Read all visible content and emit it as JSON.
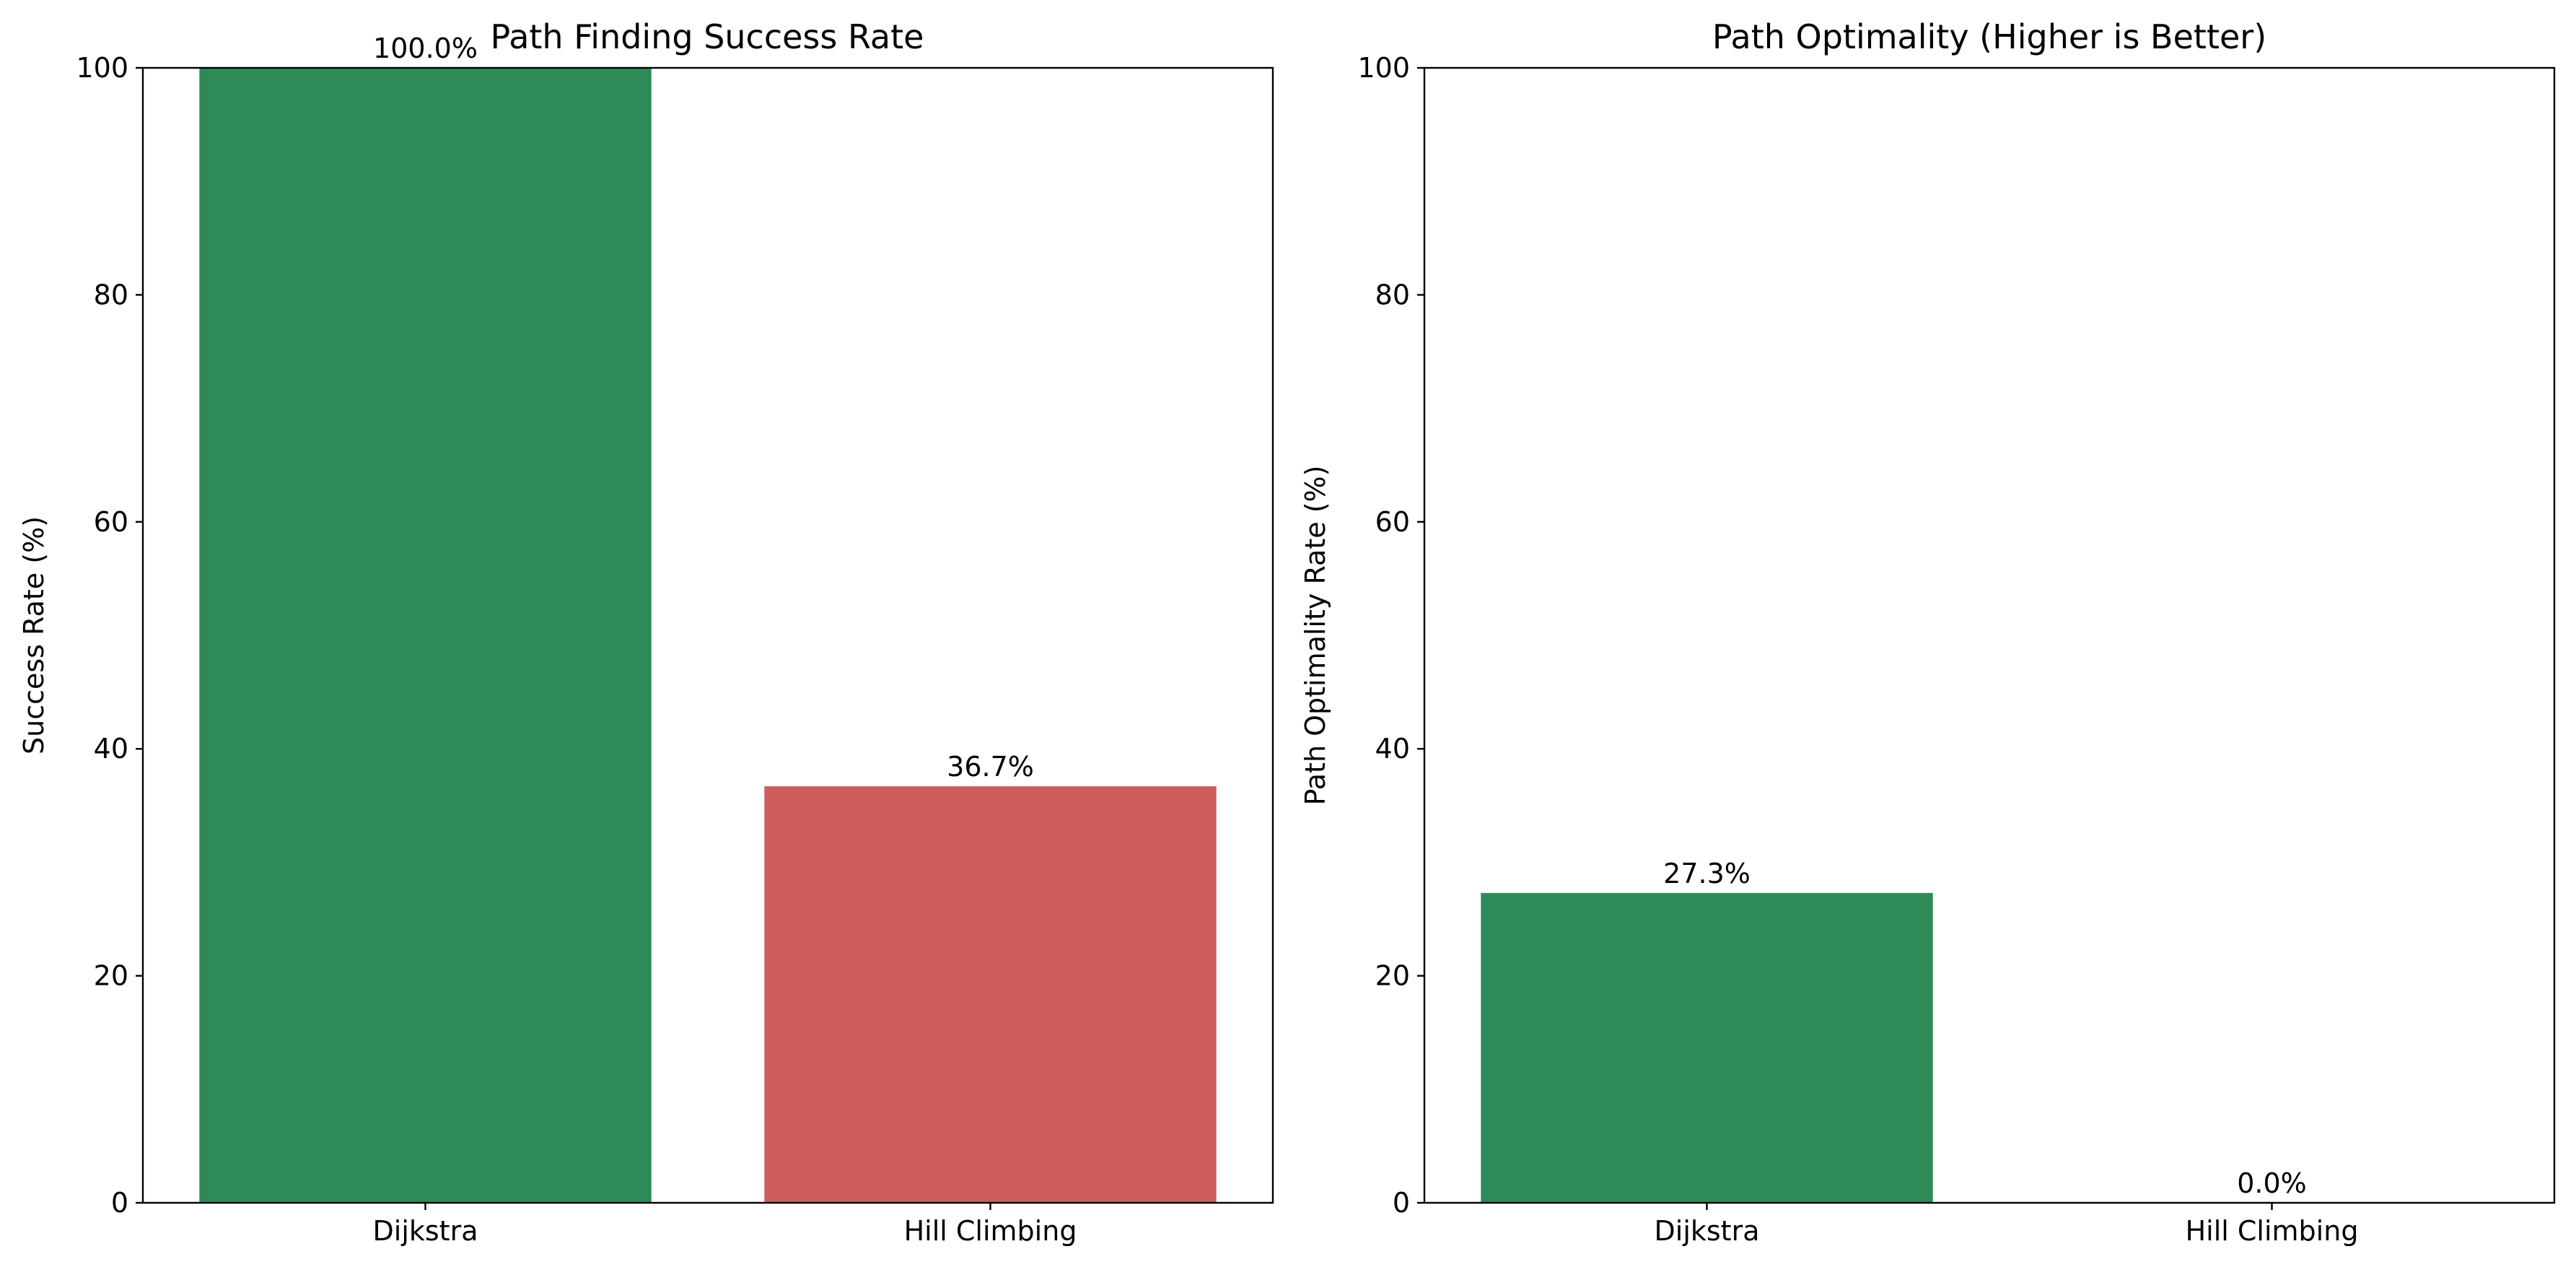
{
  "chart_data": [
    {
      "type": "bar",
      "title": "Path Finding Success Rate",
      "xlabel": "",
      "ylabel": "Success Rate (%)",
      "categories": [
        "Dijkstra",
        "Hill Climbing"
      ],
      "values": [
        100.0,
        36.7
      ],
      "value_labels": [
        "100.0%",
        "36.7%"
      ],
      "colors": [
        "#2e8b57",
        "#cd5c5c"
      ],
      "ylim": [
        0,
        100
      ],
      "yticks": [
        0,
        20,
        40,
        60,
        80,
        100
      ],
      "ytick_labels": [
        "0",
        "20",
        "40",
        "60",
        "80",
        "100"
      ],
      "grid": false
    },
    {
      "type": "bar",
      "title": "Path Optimality (Higher is Better)",
      "xlabel": "",
      "ylabel": "Path Optimality Rate (%)",
      "categories": [
        "Dijkstra",
        "Hill Climbing"
      ],
      "values": [
        27.3,
        0.0
      ],
      "value_labels": [
        "27.3%",
        "0.0%"
      ],
      "colors": [
        "#2e8b57",
        "#cd5c5c"
      ],
      "ylim": [
        0,
        100
      ],
      "yticks": [
        0,
        20,
        40,
        60,
        80,
        100
      ],
      "ytick_labels": [
        "0",
        "20",
        "40",
        "60",
        "80",
        "100"
      ],
      "grid": false
    }
  ]
}
